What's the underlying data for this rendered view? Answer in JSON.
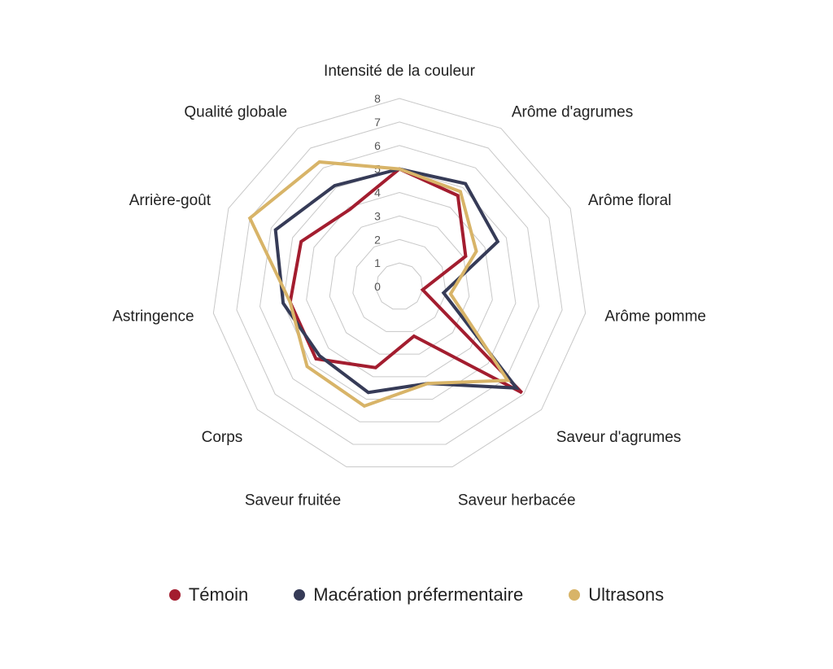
{
  "chart_data": {
    "type": "radar",
    "categories": [
      "Intensité de la couleur",
      "Arôme d'agrumes",
      "Arôme floral",
      "Arôme pomme",
      "Saveur d'agrumes",
      "Saveur herbacée",
      "Saveur fruitée",
      "Corps",
      "Astringence",
      "Arrière-goût",
      "Qualité globale"
    ],
    "ticks": [
      "0",
      "1",
      "2",
      "3",
      "4",
      "5",
      "6",
      "7",
      "8"
    ],
    "rlim": [
      0,
      8
    ],
    "grid": true,
    "legend_position": "bottom",
    "series": [
      {
        "name": "Témoin",
        "color": "#a31d2f",
        "values": [
          5.0,
          4.6,
          3.1,
          1.0,
          6.9,
          2.2,
          3.6,
          4.7,
          4.7,
          4.6,
          3.9
        ]
      },
      {
        "name": "Macération préfermentaire",
        "color": "#363b57",
        "values": [
          5.0,
          5.2,
          4.6,
          1.9,
          6.6,
          4.3,
          4.7,
          4.5,
          5.0,
          5.8,
          5.1
        ]
      },
      {
        "name": "Ultrasons",
        "color": "#d8b468",
        "values": [
          5.0,
          4.8,
          3.6,
          2.2,
          6.1,
          4.3,
          5.3,
          5.2,
          4.7,
          7.0,
          6.3
        ]
      }
    ]
  }
}
